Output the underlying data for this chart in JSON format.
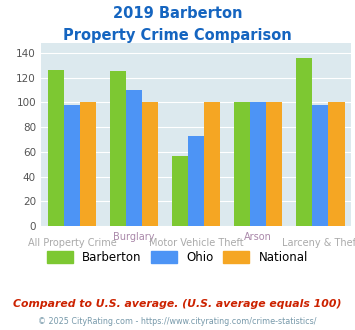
{
  "title_line1": "2019 Barberton",
  "title_line2": "Property Crime Comparison",
  "top_labels": [
    "",
    "Burglary",
    "",
    "Arson",
    ""
  ],
  "bottom_labels": [
    "All Property Crime",
    "",
    "Motor Vehicle Theft",
    "",
    "Larceny & Theft"
  ],
  "barberton": [
    126,
    125,
    57,
    100,
    136
  ],
  "ohio": [
    98,
    110,
    73,
    100,
    98
  ],
  "national": [
    100,
    100,
    100,
    100,
    100
  ],
  "color_barberton": "#7dc832",
  "color_ohio": "#4d94f5",
  "color_national": "#f5a623",
  "ylim": [
    0,
    148
  ],
  "yticks": [
    0,
    20,
    40,
    60,
    80,
    100,
    120,
    140
  ],
  "plot_bg": "#dce9ee",
  "title_color": "#1565c0",
  "xlabel_top_color": "#aa88aa",
  "xlabel_bot_color": "#aaaaaa",
  "legend_labels": [
    "Barberton",
    "Ohio",
    "National"
  ],
  "note": "Compared to U.S. average. (U.S. average equals 100)",
  "note_color": "#cc2200",
  "footer": "© 2025 CityRating.com - https://www.cityrating.com/crime-statistics/",
  "footer_color": "#7799aa"
}
